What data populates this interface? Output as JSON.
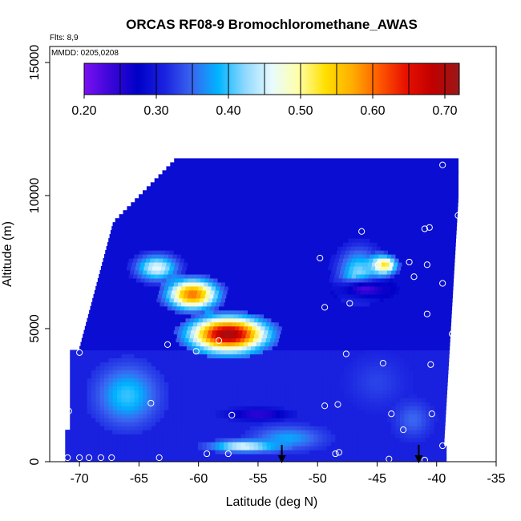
{
  "chart_data": {
    "type": "heatmap",
    "title": "ORCAS RF08-9 Bromochloromethane_AWAS",
    "flights_note": "Flts: 8,9",
    "date_note": "MMDD: 0205,0208",
    "xlabel": "Latitude (deg N)",
    "ylabel": "Altitude (m)",
    "xlim": [
      -72.5,
      -35
    ],
    "ylim": [
      0,
      15600
    ],
    "x_ticks": [
      -70,
      -65,
      -60,
      -55,
      -50,
      -45,
      -40,
      -35
    ],
    "x_tick_labels": [
      "-70",
      "-65",
      "-60",
      "-55",
      "-50",
      "-45",
      "-40",
      "-35"
    ],
    "y_ticks": [
      0,
      5000,
      10000,
      15000
    ],
    "y_tick_labels": [
      "0",
      "5000",
      "10000",
      "15000"
    ],
    "colorbar": {
      "min": 0.2,
      "max": 0.72,
      "ticks": [
        0.2,
        0.3,
        0.4,
        0.5,
        0.6,
        0.7
      ],
      "tick_labels": [
        "0.20",
        "0.30",
        "0.40",
        "0.50",
        "0.60",
        "0.70"
      ],
      "colors": [
        "#7b10f2",
        "#3a06d8",
        "#0000c8",
        "#1a22e0",
        "#3a64f0",
        "#00b4ff",
        "#8fd8ff",
        "#e8fbff",
        "#ffffa8",
        "#ffe000",
        "#ffae00",
        "#ff5a00",
        "#e81000",
        "#c00000",
        "#9a1818"
      ]
    },
    "grid": false,
    "legend": "colorbar top",
    "field": {
      "background_value": 0.29,
      "low_band": {
        "alt_low": 0,
        "alt_high": 4200,
        "lat_min": -71,
        "lat_max": -39,
        "value": 0.31
      },
      "features": [
        {
          "lat": -57.5,
          "alt": 4800,
          "value": 0.71,
          "extent_lat": 4.5,
          "extent_alt": 900
        },
        {
          "lat": -60.5,
          "alt": 6300,
          "value": 0.6,
          "extent_lat": 3.0,
          "extent_alt": 800
        },
        {
          "lat": -63.5,
          "alt": 7300,
          "value": 0.46,
          "extent_lat": 2.5,
          "extent_alt": 700
        },
        {
          "lat": -44.5,
          "alt": 7400,
          "value": 0.56,
          "extent_lat": 1.6,
          "extent_alt": 500
        },
        {
          "lat": -46.5,
          "alt": 7100,
          "value": 0.42,
          "extent_lat": 2.5,
          "extent_alt": 1300
        },
        {
          "lat": -66.0,
          "alt": 2500,
          "value": 0.4,
          "extent_lat": 3.5,
          "extent_alt": 1500
        },
        {
          "lat": -56.0,
          "alt": 600,
          "value": 0.47,
          "extent_lat": 4.0,
          "extent_alt": 300
        },
        {
          "lat": -52.5,
          "alt": 900,
          "value": 0.38,
          "extent_lat": 4.0,
          "extent_alt": 600
        },
        {
          "lat": -45.0,
          "alt": 3000,
          "value": 0.33,
          "extent_lat": 3.0,
          "extent_alt": 1200
        },
        {
          "lat": -55.0,
          "alt": 1800,
          "value": 0.24,
          "extent_lat": 3.5,
          "extent_alt": 300
        },
        {
          "lat": -46.0,
          "alt": 6500,
          "value": 0.23,
          "extent_lat": 3.0,
          "extent_alt": 500
        },
        {
          "lat": -42.0,
          "alt": 1600,
          "value": 0.35,
          "extent_lat": 2.0,
          "extent_alt": 900
        }
      ]
    },
    "samples": [
      {
        "lat": -71.0,
        "alt": 150
      },
      {
        "lat": -70.0,
        "alt": 150
      },
      {
        "lat": -69.2,
        "alt": 150
      },
      {
        "lat": -68.2,
        "alt": 150
      },
      {
        "lat": -67.3,
        "alt": 150
      },
      {
        "lat": -63.3,
        "alt": 150
      },
      {
        "lat": -59.3,
        "alt": 300
      },
      {
        "lat": -57.5,
        "alt": 300
      },
      {
        "lat": -48.5,
        "alt": 300
      },
      {
        "lat": -48.2,
        "alt": 350
      },
      {
        "lat": -44.0,
        "alt": 100
      },
      {
        "lat": -41.0,
        "alt": 60
      },
      {
        "lat": -39.5,
        "alt": 600
      },
      {
        "lat": -70.9,
        "alt": 1900
      },
      {
        "lat": -64.0,
        "alt": 2200
      },
      {
        "lat": -57.2,
        "alt": 1750
      },
      {
        "lat": -49.4,
        "alt": 2100
      },
      {
        "lat": -48.3,
        "alt": 2150
      },
      {
        "lat": -42.8,
        "alt": 1200
      },
      {
        "lat": -43.8,
        "alt": 1800
      },
      {
        "lat": -40.4,
        "alt": 1800
      },
      {
        "lat": -70.0,
        "alt": 4100
      },
      {
        "lat": -62.6,
        "alt": 4400
      },
      {
        "lat": -60.2,
        "alt": 4150
      },
      {
        "lat": -58.3,
        "alt": 4550
      },
      {
        "lat": -47.6,
        "alt": 4050
      },
      {
        "lat": -44.5,
        "alt": 3700
      },
      {
        "lat": -40.5,
        "alt": 3650
      },
      {
        "lat": -49.4,
        "alt": 5800
      },
      {
        "lat": -47.3,
        "alt": 5950
      },
      {
        "lat": -40.8,
        "alt": 5550
      },
      {
        "lat": -38.7,
        "alt": 4800
      },
      {
        "lat": -49.8,
        "alt": 7650
      },
      {
        "lat": -44.9,
        "alt": 7400
      },
      {
        "lat": -41.9,
        "alt": 6950
      },
      {
        "lat": -39.5,
        "alt": 6700
      },
      {
        "lat": -40.8,
        "alt": 7400
      },
      {
        "lat": -42.3,
        "alt": 7500
      },
      {
        "lat": -46.3,
        "alt": 8650
      },
      {
        "lat": -41.0,
        "alt": 8750
      },
      {
        "lat": -40.6,
        "alt": 8800
      },
      {
        "lat": -68.2,
        "alt": 8600
      },
      {
        "lat": -38.2,
        "alt": 9250
      },
      {
        "lat": -37.8,
        "alt": 11050
      },
      {
        "lat": -39.5,
        "alt": 11150
      }
    ],
    "flight_markers_lat": [
      -53.0,
      -41.5
    ]
  }
}
